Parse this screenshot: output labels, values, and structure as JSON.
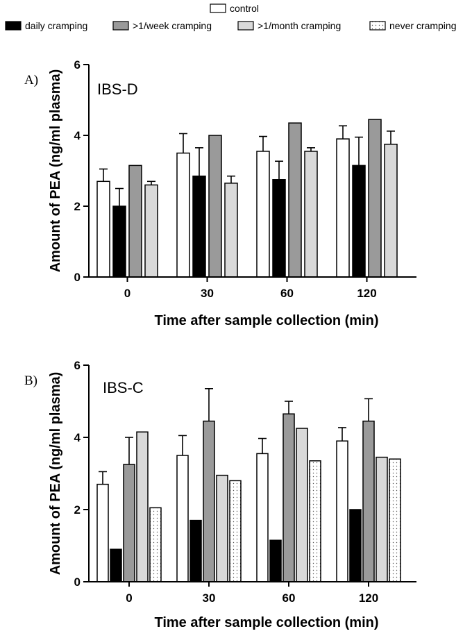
{
  "legend": {
    "entries": [
      {
        "key": "control",
        "label": "control",
        "pattern": "white"
      },
      {
        "key": "daily",
        "label": "daily cramping",
        "pattern": "black"
      },
      {
        "key": "week",
        "label": ">1/week cramping",
        "pattern": "darkgray"
      },
      {
        "key": "month",
        "label": ">1/month cramping",
        "pattern": "lightgray"
      },
      {
        "key": "never",
        "label": "never cramping",
        "pattern": "dotted"
      }
    ]
  },
  "colors": {
    "white": "#ffffff",
    "black": "#000000",
    "darkgray": "#9a9a9a",
    "lightgray": "#d9d9d9",
    "dotted_bg": "#ffffff",
    "dot": "#555555"
  },
  "chart_data": [
    {
      "type": "bar",
      "panel_letter": "A)",
      "title": "IBS-D",
      "xlabel": "Time after sample collection (min)",
      "ylabel": "Amount of PEA (ng/ml plasma)",
      "ylim": [
        0,
        6
      ],
      "yticks": [
        0,
        2,
        4,
        6
      ],
      "categories": [
        "0",
        "30",
        "60",
        "120"
      ],
      "grid": false,
      "series": [
        {
          "name": "control",
          "pattern": "white",
          "values": [
            2.7,
            3.5,
            3.55,
            3.9
          ],
          "errors": [
            0.35,
            0.55,
            0.42,
            0.37
          ]
        },
        {
          "name": "daily cramping",
          "pattern": "black",
          "values": [
            2.0,
            2.85,
            2.75,
            3.15
          ],
          "errors": [
            0.5,
            0.8,
            0.52,
            0.8
          ]
        },
        {
          "name": ">1/week cramping",
          "pattern": "darkgray",
          "values": [
            3.15,
            4.0,
            4.35,
            4.45
          ],
          "errors": [
            0,
            0,
            0,
            0
          ]
        },
        {
          "name": ">1/month cramping",
          "pattern": "lightgray",
          "values": [
            2.6,
            2.65,
            3.55,
            3.75
          ],
          "errors": [
            0.1,
            0.2,
            0.1,
            0.37
          ]
        }
      ]
    },
    {
      "type": "bar",
      "panel_letter": "B)",
      "title": "IBS-C",
      "xlabel": "Time after sample collection (min)",
      "ylabel": "Amount of PEA (ng/ml plasma)",
      "ylim": [
        0,
        6
      ],
      "yticks": [
        0,
        2,
        4,
        6
      ],
      "categories": [
        "0",
        "30",
        "60",
        "120"
      ],
      "grid": false,
      "series": [
        {
          "name": "control",
          "pattern": "white",
          "values": [
            2.7,
            3.5,
            3.55,
            3.9
          ],
          "errors": [
            0.35,
            0.55,
            0.42,
            0.37
          ]
        },
        {
          "name": "daily cramping",
          "pattern": "black",
          "values": [
            0.9,
            1.7,
            1.15,
            2.0
          ],
          "errors": [
            0,
            0,
            0,
            0
          ]
        },
        {
          "name": ">1/week cramping",
          "pattern": "darkgray",
          "values": [
            3.25,
            4.45,
            4.65,
            4.45
          ],
          "errors": [
            0.75,
            0.9,
            0.35,
            0.62
          ]
        },
        {
          "name": ">1/month cramping",
          "pattern": "lightgray",
          "values": [
            4.15,
            2.95,
            4.25,
            3.45
          ],
          "errors": [
            0,
            0,
            0,
            0
          ]
        },
        {
          "name": "never cramping",
          "pattern": "dotted",
          "values": [
            2.05,
            2.8,
            3.35,
            3.4
          ],
          "errors": [
            0,
            0,
            0,
            0
          ]
        }
      ]
    }
  ]
}
